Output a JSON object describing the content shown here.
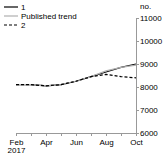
{
  "chart_data": {
    "type": "line",
    "y_label": "no.",
    "categories": [
      "Feb 2017",
      null,
      "Apr",
      null,
      "Jun",
      null,
      "Aug",
      null,
      "Oct"
    ],
    "series": [
      {
        "name": "1",
        "color": "#000000",
        "line_style": "solid",
        "values": [
          8100,
          8100,
          8050,
          8100,
          8250,
          8450,
          8650,
          8850,
          9000
        ]
      },
      {
        "name": "Published trend",
        "color": "#b0b0b0",
        "line_style": "solid",
        "values": [
          8100,
          8100,
          8050,
          8100,
          8250,
          8450,
          8700,
          8850,
          8950
        ]
      },
      {
        "name": "2",
        "color": "#000000",
        "line_style": "dashed",
        "values": [
          8100,
          8100,
          8050,
          8100,
          8250,
          8450,
          8550,
          8450,
          8400
        ]
      }
    ],
    "ylim": [
      6000,
      11000
    ],
    "yticks": [
      6000,
      7000,
      8000,
      9000,
      10000,
      11000
    ],
    "legend": "top-left",
    "grid": false
  }
}
